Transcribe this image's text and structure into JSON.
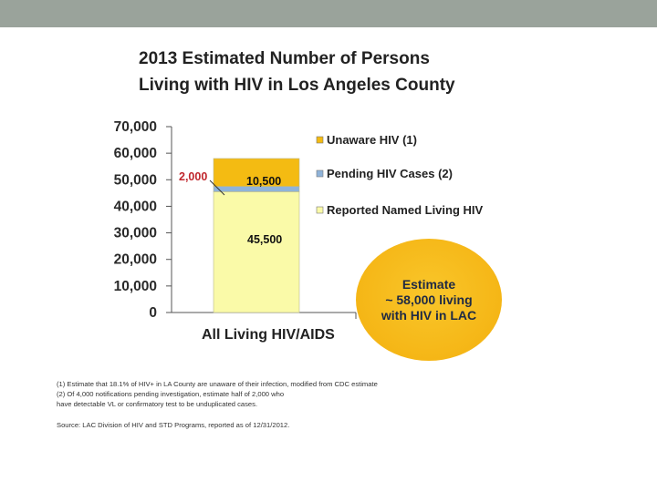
{
  "slide": {
    "title_line1": "2013 Estimated Number of Persons",
    "title_line2": "Living with HIV in Los Angeles County",
    "estimate_line1": "Estimate",
    "estimate_line2": "~ 58,000 living",
    "estimate_line3": "with HIV in LAC",
    "footnote1": "(1) Estimate that 18.1% of HIV+ in LA County are unaware of their infection, modified from CDC estimate",
    "footnote2": "(2) Of 4,000 notifications pending investigation, estimate half of 2,000 who",
    "footnote3": "have detectable VL or confirmatory test to be unduplicated cases.",
    "source": "Source: LAC Division of HIV and STD Programs, reported as of 12/31/2012."
  },
  "chart_data": {
    "type": "bar",
    "stacked": true,
    "categories": [
      "All Living HIV/AIDS"
    ],
    "series": [
      {
        "name": "Reported Named Living HIV",
        "values": [
          45500
        ],
        "label": "45,500",
        "color": "#fafaa8"
      },
      {
        "name": "Pending HIV Cases (2)",
        "values": [
          2000
        ],
        "label": "2,000",
        "color": "#8fb3d9"
      },
      {
        "name": "Unaware HIV (1)",
        "values": [
          10500
        ],
        "label": "10,500",
        "color": "#f4bb12"
      }
    ],
    "legend_order": [
      "Unaware HIV (1)",
      "Pending HIV Cases (2)",
      "Reported Named Living HIV"
    ],
    "yticks": [
      "70,000",
      "60,000",
      "50,000",
      "40,000",
      "30,000",
      "20,000",
      "10,000",
      "0"
    ],
    "ylim": [
      0,
      70000
    ],
    "xlabel": "All Living HIV/AIDS",
    "legend_position": "right"
  }
}
